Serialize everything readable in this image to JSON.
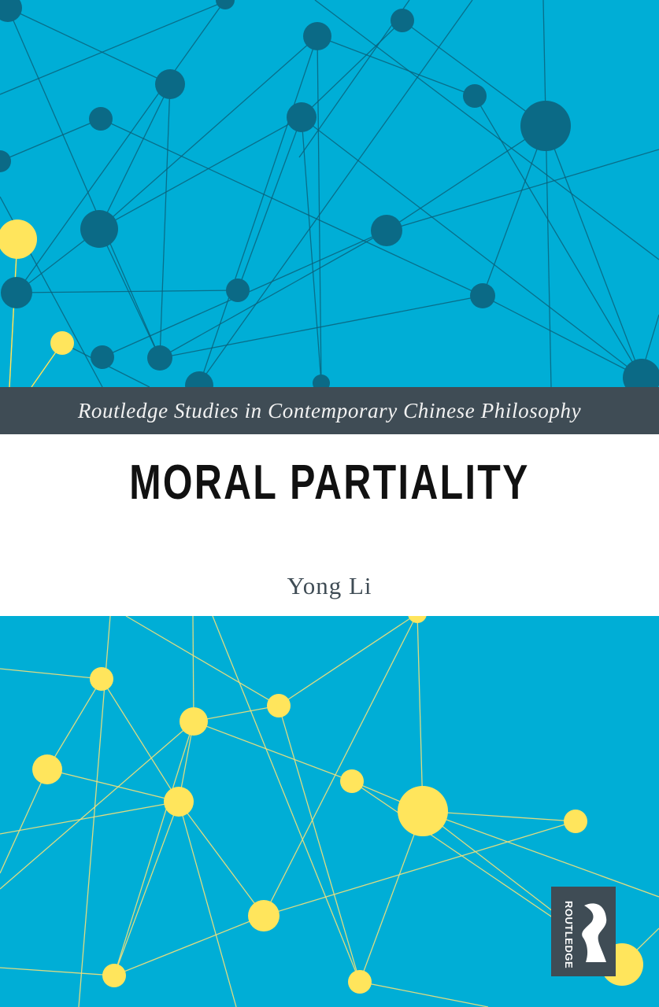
{
  "cover": {
    "series": "Routledge Studies in Contemporary Chinese Philosophy",
    "title": "MORAL PARTIALITY",
    "author": "Yong Li",
    "publisher_logo": "ROUTLEDGE"
  },
  "colors": {
    "background": "#00aed6",
    "dark_node": "#0b6a86",
    "yellow_node": "#ffe55c",
    "band": "#3f4c55"
  }
}
